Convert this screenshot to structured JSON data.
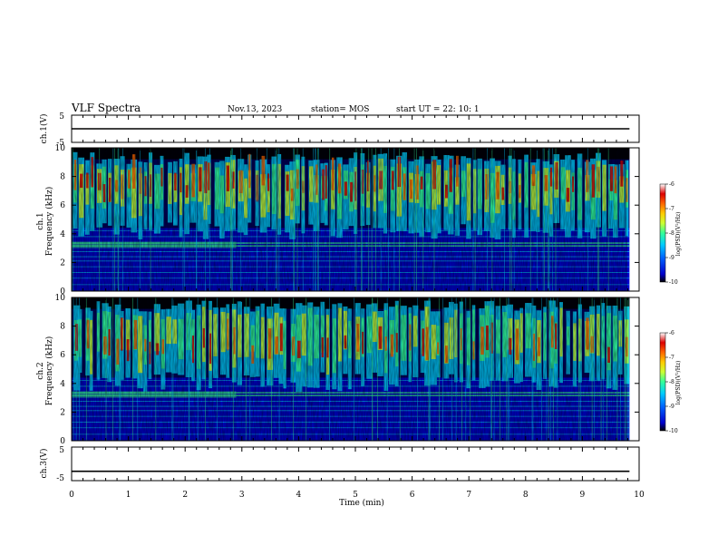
{
  "header": {
    "title": "VLF Spectra",
    "date": "Nov.13, 2023",
    "station": "station= MOS",
    "start": "start  UT =   22: 10: 1"
  },
  "chart_data": [
    {
      "type": "line",
      "name": "ch1-voltage",
      "ylabel": "ch.1(V)",
      "ylim": [
        -5,
        5
      ],
      "yticks": [
        "5",
        "-5"
      ],
      "x": [
        0,
        10
      ],
      "values": [
        0,
        0
      ]
    },
    {
      "type": "heatmap",
      "name": "ch1-spectrogram",
      "ylabel": "Frequency (kHz)",
      "channel_label": "ch.1",
      "ylim": [
        0,
        10
      ],
      "yticks": [
        "0",
        "2",
        "4",
        "6",
        "8",
        "10"
      ],
      "xlim": [
        0,
        10
      ],
      "colorbar": {
        "label": "log(PSD)(V²/Hz)",
        "ticks": [
          "-6",
          "-7",
          "-8",
          "-9",
          "-10"
        ],
        "range": [
          -10,
          -6
        ],
        "colors": [
          "#000000",
          "#0000cc",
          "#0066ff",
          "#00ccff",
          "#33ff99",
          "#ccff33",
          "#ffcc00",
          "#ff6600",
          "#dd0000",
          "#ffffff"
        ]
      }
    },
    {
      "type": "heatmap",
      "name": "ch2-spectrogram",
      "ylabel": "Frequency (kHz)",
      "channel_label": "ch.2",
      "ylim": [
        0,
        10
      ],
      "yticks": [
        "0",
        "2",
        "4",
        "6",
        "8",
        "10"
      ],
      "xlim": [
        0,
        10
      ],
      "colorbar": {
        "label": "log(PSD)(V²/Hz)",
        "ticks": [
          "-6",
          "-7",
          "-8",
          "-9",
          "-10"
        ],
        "range": [
          -10,
          -6
        ],
        "colors": [
          "#000000",
          "#0000cc",
          "#0066ff",
          "#00ccff",
          "#33ff99",
          "#ccff33",
          "#ffcc00",
          "#ff6600",
          "#dd0000",
          "#ffffff"
        ]
      }
    },
    {
      "type": "line",
      "name": "ch3-voltage",
      "ylabel": "ch.3(V)",
      "ylim": [
        -5,
        5
      ],
      "yticks": [
        "5",
        "-5"
      ],
      "x": [
        0,
        10
      ],
      "values": [
        -2.2,
        -2.2
      ]
    }
  ],
  "xaxis": {
    "label": "Time  (min)",
    "ticks": [
      "0",
      "1",
      "2",
      "3",
      "4",
      "5",
      "6",
      "7",
      "8",
      "9",
      "10"
    ],
    "xlim": [
      0,
      10
    ],
    "data_end": 9.83
  }
}
